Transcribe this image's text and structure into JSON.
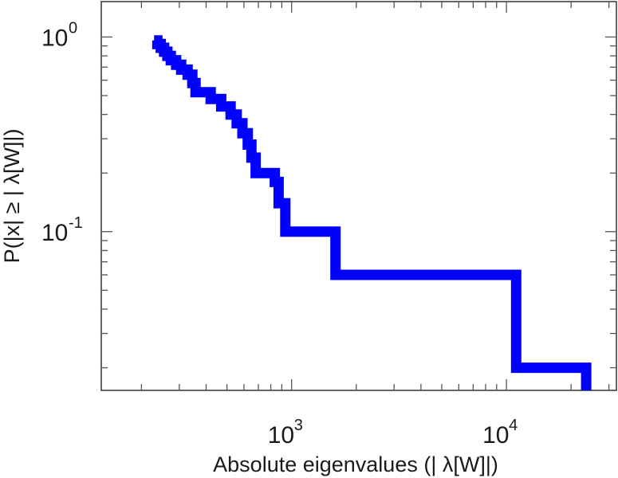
{
  "chart_data": {
    "type": "line",
    "step": true,
    "xlabel": "Absolute eigenvalues (|     λ[W]|)",
    "ylabel": "P(|x|  ≥ | λ[W]|)",
    "x_scale": "log",
    "y_scale": "log",
    "xlim": [
      130,
      32500
    ],
    "ylim": [
      0.0153,
      1.52
    ],
    "grid": false,
    "line_color": "#0000ff",
    "x_ticks": [
      {
        "base": "10",
        "exp": "3",
        "value": 1000
      },
      {
        "base": "10",
        "exp": "4",
        "value": 10000
      }
    ],
    "y_ticks": [
      {
        "base": "10",
        "exp": "0",
        "value": 1
      },
      {
        "base": "10",
        "exp": "-1",
        "value": 0.1
      }
    ],
    "points": [
      {
        "x": 229,
        "y": 0.96
      },
      {
        "x": 237,
        "y": 0.92
      },
      {
        "x": 246,
        "y": 0.88
      },
      {
        "x": 255,
        "y": 0.84
      },
      {
        "x": 264,
        "y": 0.8
      },
      {
        "x": 274,
        "y": 0.76
      },
      {
        "x": 290,
        "y": 0.72
      },
      {
        "x": 306,
        "y": 0.68
      },
      {
        "x": 328,
        "y": 0.64
      },
      {
        "x": 345,
        "y": 0.58
      },
      {
        "x": 357,
        "y": 0.52
      },
      {
        "x": 420,
        "y": 0.48
      },
      {
        "x": 470,
        "y": 0.44
      },
      {
        "x": 520,
        "y": 0.4
      },
      {
        "x": 555,
        "y": 0.36
      },
      {
        "x": 590,
        "y": 0.32
      },
      {
        "x": 625,
        "y": 0.28
      },
      {
        "x": 650,
        "y": 0.24
      },
      {
        "x": 680,
        "y": 0.2
      },
      {
        "x": 835,
        "y": 0.18
      },
      {
        "x": 870,
        "y": 0.14
      },
      {
        "x": 935,
        "y": 0.1
      },
      {
        "x": 1600,
        "y": 0.06
      },
      {
        "x": 11100,
        "y": 0.02
      },
      {
        "x": 23500,
        "y": 0.0153
      }
    ]
  }
}
